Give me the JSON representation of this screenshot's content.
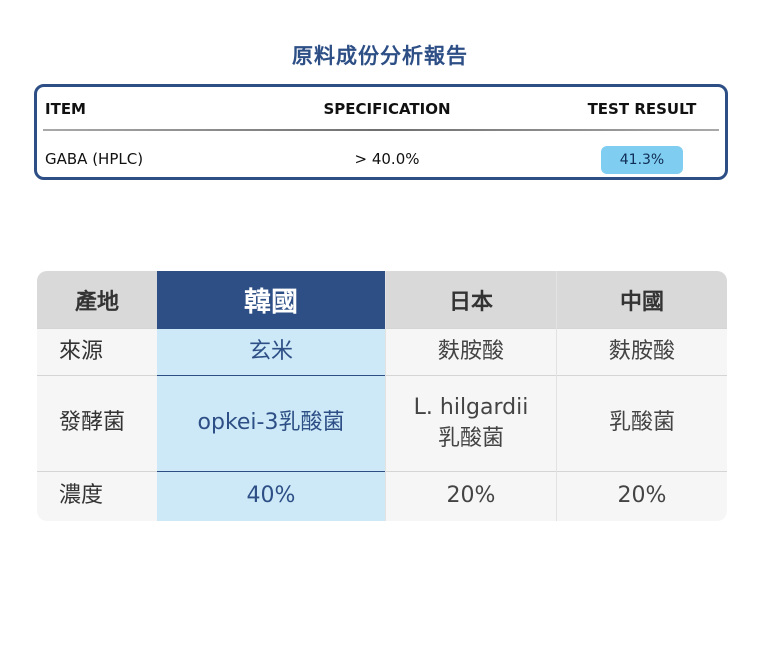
{
  "report": {
    "title": "原料成份分析報告",
    "headers": [
      "ITEM",
      "SPECIFICATION",
      "TEST RESULT"
    ],
    "rows": [
      {
        "item": "GABA (HPLC)",
        "spec": "> 40.0%",
        "result": "41.3%"
      }
    ]
  },
  "comparison": {
    "columns": [
      "產地",
      "韓國",
      "日本",
      "中國"
    ],
    "rows": [
      {
        "label": "來源",
        "cells": [
          "玄米",
          "麩胺酸",
          "麩胺酸"
        ]
      },
      {
        "label": "發酵菌",
        "cells": [
          "opkei-3乳酸菌",
          "L. hilgardii\n乳酸菌",
          "乳酸菌"
        ]
      },
      {
        "label": "濃度",
        "cells": [
          "40%",
          "20%",
          "20%"
        ]
      }
    ]
  },
  "colors": {
    "brand_navy": "#2d4f86",
    "highlight_light_blue": "#cde9f7",
    "result_badge": "#80cdf2",
    "header_gray": "#d9d9d9"
  }
}
